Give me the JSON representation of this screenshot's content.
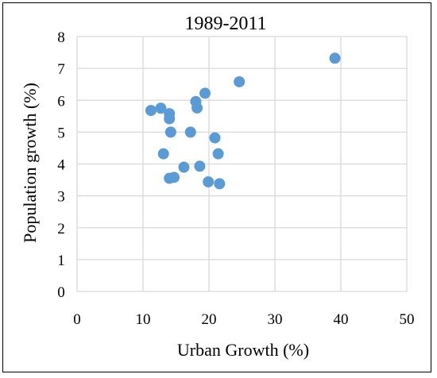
{
  "chart_data": {
    "type": "scatter",
    "title": "1989-2011",
    "xlabel": "Urban Growth (%)",
    "ylabel": "Population growth (%)",
    "xlim": [
      0,
      50
    ],
    "ylim": [
      0,
      8
    ],
    "xticks": [
      0,
      10,
      20,
      30,
      40,
      50
    ],
    "yticks": [
      0,
      1,
      2,
      3,
      4,
      5,
      6,
      7,
      8
    ],
    "grid": true,
    "legend": "none",
    "point_color": "#5B9BD5",
    "points": [
      {
        "x": 11.2,
        "y": 5.68
      },
      {
        "x": 12.7,
        "y": 5.75
      },
      {
        "x": 14.0,
        "y": 5.58
      },
      {
        "x": 14.0,
        "y": 5.42
      },
      {
        "x": 14.2,
        "y": 5.0
      },
      {
        "x": 13.1,
        "y": 4.32
      },
      {
        "x": 14.0,
        "y": 3.55
      },
      {
        "x": 14.7,
        "y": 3.58
      },
      {
        "x": 16.2,
        "y": 3.9
      },
      {
        "x": 17.2,
        "y": 5.0
      },
      {
        "x": 18.0,
        "y": 5.96
      },
      {
        "x": 18.2,
        "y": 5.76
      },
      {
        "x": 18.6,
        "y": 3.93
      },
      {
        "x": 19.4,
        "y": 6.22
      },
      {
        "x": 19.9,
        "y": 3.44
      },
      {
        "x": 20.9,
        "y": 4.82
      },
      {
        "x": 21.4,
        "y": 4.32
      },
      {
        "x": 21.6,
        "y": 3.38
      },
      {
        "x": 24.6,
        "y": 6.58
      },
      {
        "x": 39.1,
        "y": 7.32
      }
    ]
  }
}
